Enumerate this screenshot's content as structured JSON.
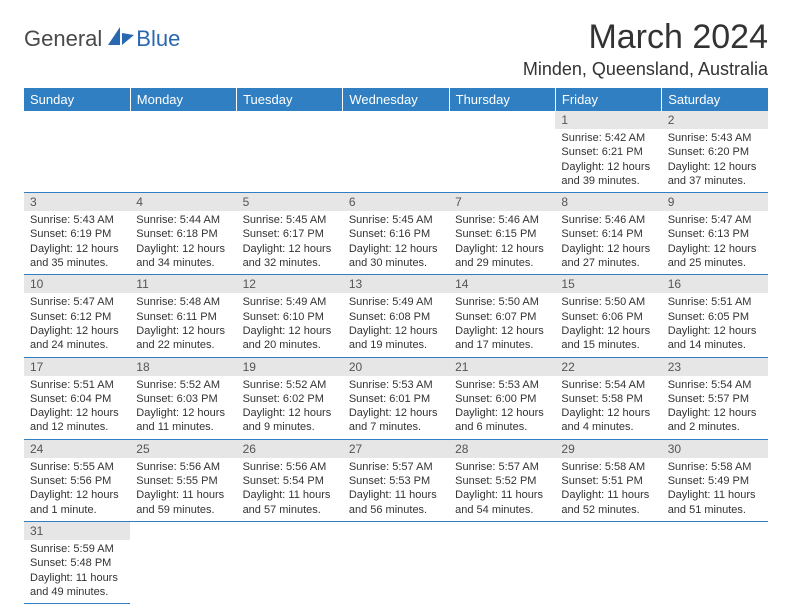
{
  "brand": {
    "part1": "General",
    "part2": "Blue"
  },
  "title": "March 2024",
  "location": "Minden, Queensland, Australia",
  "colors": {
    "header_bg": "#2f7fc2",
    "header_text": "#ffffff",
    "daynum_bg": "#e6e6e6",
    "body_text": "#333333",
    "rule": "#2f7fc2",
    "logo_blue": "#2968b0",
    "logo_gray": "#4a4a4a"
  },
  "day_headers": [
    "Sunday",
    "Monday",
    "Tuesday",
    "Wednesday",
    "Thursday",
    "Friday",
    "Saturday"
  ],
  "weeks": [
    [
      null,
      null,
      null,
      null,
      null,
      {
        "n": "1",
        "sr": "Sunrise: 5:42 AM",
        "ss": "Sunset: 6:21 PM",
        "d1": "Daylight: 12 hours",
        "d2": "and 39 minutes."
      },
      {
        "n": "2",
        "sr": "Sunrise: 5:43 AM",
        "ss": "Sunset: 6:20 PM",
        "d1": "Daylight: 12 hours",
        "d2": "and 37 minutes."
      }
    ],
    [
      {
        "n": "3",
        "sr": "Sunrise: 5:43 AM",
        "ss": "Sunset: 6:19 PM",
        "d1": "Daylight: 12 hours",
        "d2": "and 35 minutes."
      },
      {
        "n": "4",
        "sr": "Sunrise: 5:44 AM",
        "ss": "Sunset: 6:18 PM",
        "d1": "Daylight: 12 hours",
        "d2": "and 34 minutes."
      },
      {
        "n": "5",
        "sr": "Sunrise: 5:45 AM",
        "ss": "Sunset: 6:17 PM",
        "d1": "Daylight: 12 hours",
        "d2": "and 32 minutes."
      },
      {
        "n": "6",
        "sr": "Sunrise: 5:45 AM",
        "ss": "Sunset: 6:16 PM",
        "d1": "Daylight: 12 hours",
        "d2": "and 30 minutes."
      },
      {
        "n": "7",
        "sr": "Sunrise: 5:46 AM",
        "ss": "Sunset: 6:15 PM",
        "d1": "Daylight: 12 hours",
        "d2": "and 29 minutes."
      },
      {
        "n": "8",
        "sr": "Sunrise: 5:46 AM",
        "ss": "Sunset: 6:14 PM",
        "d1": "Daylight: 12 hours",
        "d2": "and 27 minutes."
      },
      {
        "n": "9",
        "sr": "Sunrise: 5:47 AM",
        "ss": "Sunset: 6:13 PM",
        "d1": "Daylight: 12 hours",
        "d2": "and 25 minutes."
      }
    ],
    [
      {
        "n": "10",
        "sr": "Sunrise: 5:47 AM",
        "ss": "Sunset: 6:12 PM",
        "d1": "Daylight: 12 hours",
        "d2": "and 24 minutes."
      },
      {
        "n": "11",
        "sr": "Sunrise: 5:48 AM",
        "ss": "Sunset: 6:11 PM",
        "d1": "Daylight: 12 hours",
        "d2": "and 22 minutes."
      },
      {
        "n": "12",
        "sr": "Sunrise: 5:49 AM",
        "ss": "Sunset: 6:10 PM",
        "d1": "Daylight: 12 hours",
        "d2": "and 20 minutes."
      },
      {
        "n": "13",
        "sr": "Sunrise: 5:49 AM",
        "ss": "Sunset: 6:08 PM",
        "d1": "Daylight: 12 hours",
        "d2": "and 19 minutes."
      },
      {
        "n": "14",
        "sr": "Sunrise: 5:50 AM",
        "ss": "Sunset: 6:07 PM",
        "d1": "Daylight: 12 hours",
        "d2": "and 17 minutes."
      },
      {
        "n": "15",
        "sr": "Sunrise: 5:50 AM",
        "ss": "Sunset: 6:06 PM",
        "d1": "Daylight: 12 hours",
        "d2": "and 15 minutes."
      },
      {
        "n": "16",
        "sr": "Sunrise: 5:51 AM",
        "ss": "Sunset: 6:05 PM",
        "d1": "Daylight: 12 hours",
        "d2": "and 14 minutes."
      }
    ],
    [
      {
        "n": "17",
        "sr": "Sunrise: 5:51 AM",
        "ss": "Sunset: 6:04 PM",
        "d1": "Daylight: 12 hours",
        "d2": "and 12 minutes."
      },
      {
        "n": "18",
        "sr": "Sunrise: 5:52 AM",
        "ss": "Sunset: 6:03 PM",
        "d1": "Daylight: 12 hours",
        "d2": "and 11 minutes."
      },
      {
        "n": "19",
        "sr": "Sunrise: 5:52 AM",
        "ss": "Sunset: 6:02 PM",
        "d1": "Daylight: 12 hours",
        "d2": "and 9 minutes."
      },
      {
        "n": "20",
        "sr": "Sunrise: 5:53 AM",
        "ss": "Sunset: 6:01 PM",
        "d1": "Daylight: 12 hours",
        "d2": "and 7 minutes."
      },
      {
        "n": "21",
        "sr": "Sunrise: 5:53 AM",
        "ss": "Sunset: 6:00 PM",
        "d1": "Daylight: 12 hours",
        "d2": "and 6 minutes."
      },
      {
        "n": "22",
        "sr": "Sunrise: 5:54 AM",
        "ss": "Sunset: 5:58 PM",
        "d1": "Daylight: 12 hours",
        "d2": "and 4 minutes."
      },
      {
        "n": "23",
        "sr": "Sunrise: 5:54 AM",
        "ss": "Sunset: 5:57 PM",
        "d1": "Daylight: 12 hours",
        "d2": "and 2 minutes."
      }
    ],
    [
      {
        "n": "24",
        "sr": "Sunrise: 5:55 AM",
        "ss": "Sunset: 5:56 PM",
        "d1": "Daylight: 12 hours",
        "d2": "and 1 minute."
      },
      {
        "n": "25",
        "sr": "Sunrise: 5:56 AM",
        "ss": "Sunset: 5:55 PM",
        "d1": "Daylight: 11 hours",
        "d2": "and 59 minutes."
      },
      {
        "n": "26",
        "sr": "Sunrise: 5:56 AM",
        "ss": "Sunset: 5:54 PM",
        "d1": "Daylight: 11 hours",
        "d2": "and 57 minutes."
      },
      {
        "n": "27",
        "sr": "Sunrise: 5:57 AM",
        "ss": "Sunset: 5:53 PM",
        "d1": "Daylight: 11 hours",
        "d2": "and 56 minutes."
      },
      {
        "n": "28",
        "sr": "Sunrise: 5:57 AM",
        "ss": "Sunset: 5:52 PM",
        "d1": "Daylight: 11 hours",
        "d2": "and 54 minutes."
      },
      {
        "n": "29",
        "sr": "Sunrise: 5:58 AM",
        "ss": "Sunset: 5:51 PM",
        "d1": "Daylight: 11 hours",
        "d2": "and 52 minutes."
      },
      {
        "n": "30",
        "sr": "Sunrise: 5:58 AM",
        "ss": "Sunset: 5:49 PM",
        "d1": "Daylight: 11 hours",
        "d2": "and 51 minutes."
      }
    ],
    [
      {
        "n": "31",
        "sr": "Sunrise: 5:59 AM",
        "ss": "Sunset: 5:48 PM",
        "d1": "Daylight: 11 hours",
        "d2": "and 49 minutes."
      },
      null,
      null,
      null,
      null,
      null,
      null
    ]
  ]
}
